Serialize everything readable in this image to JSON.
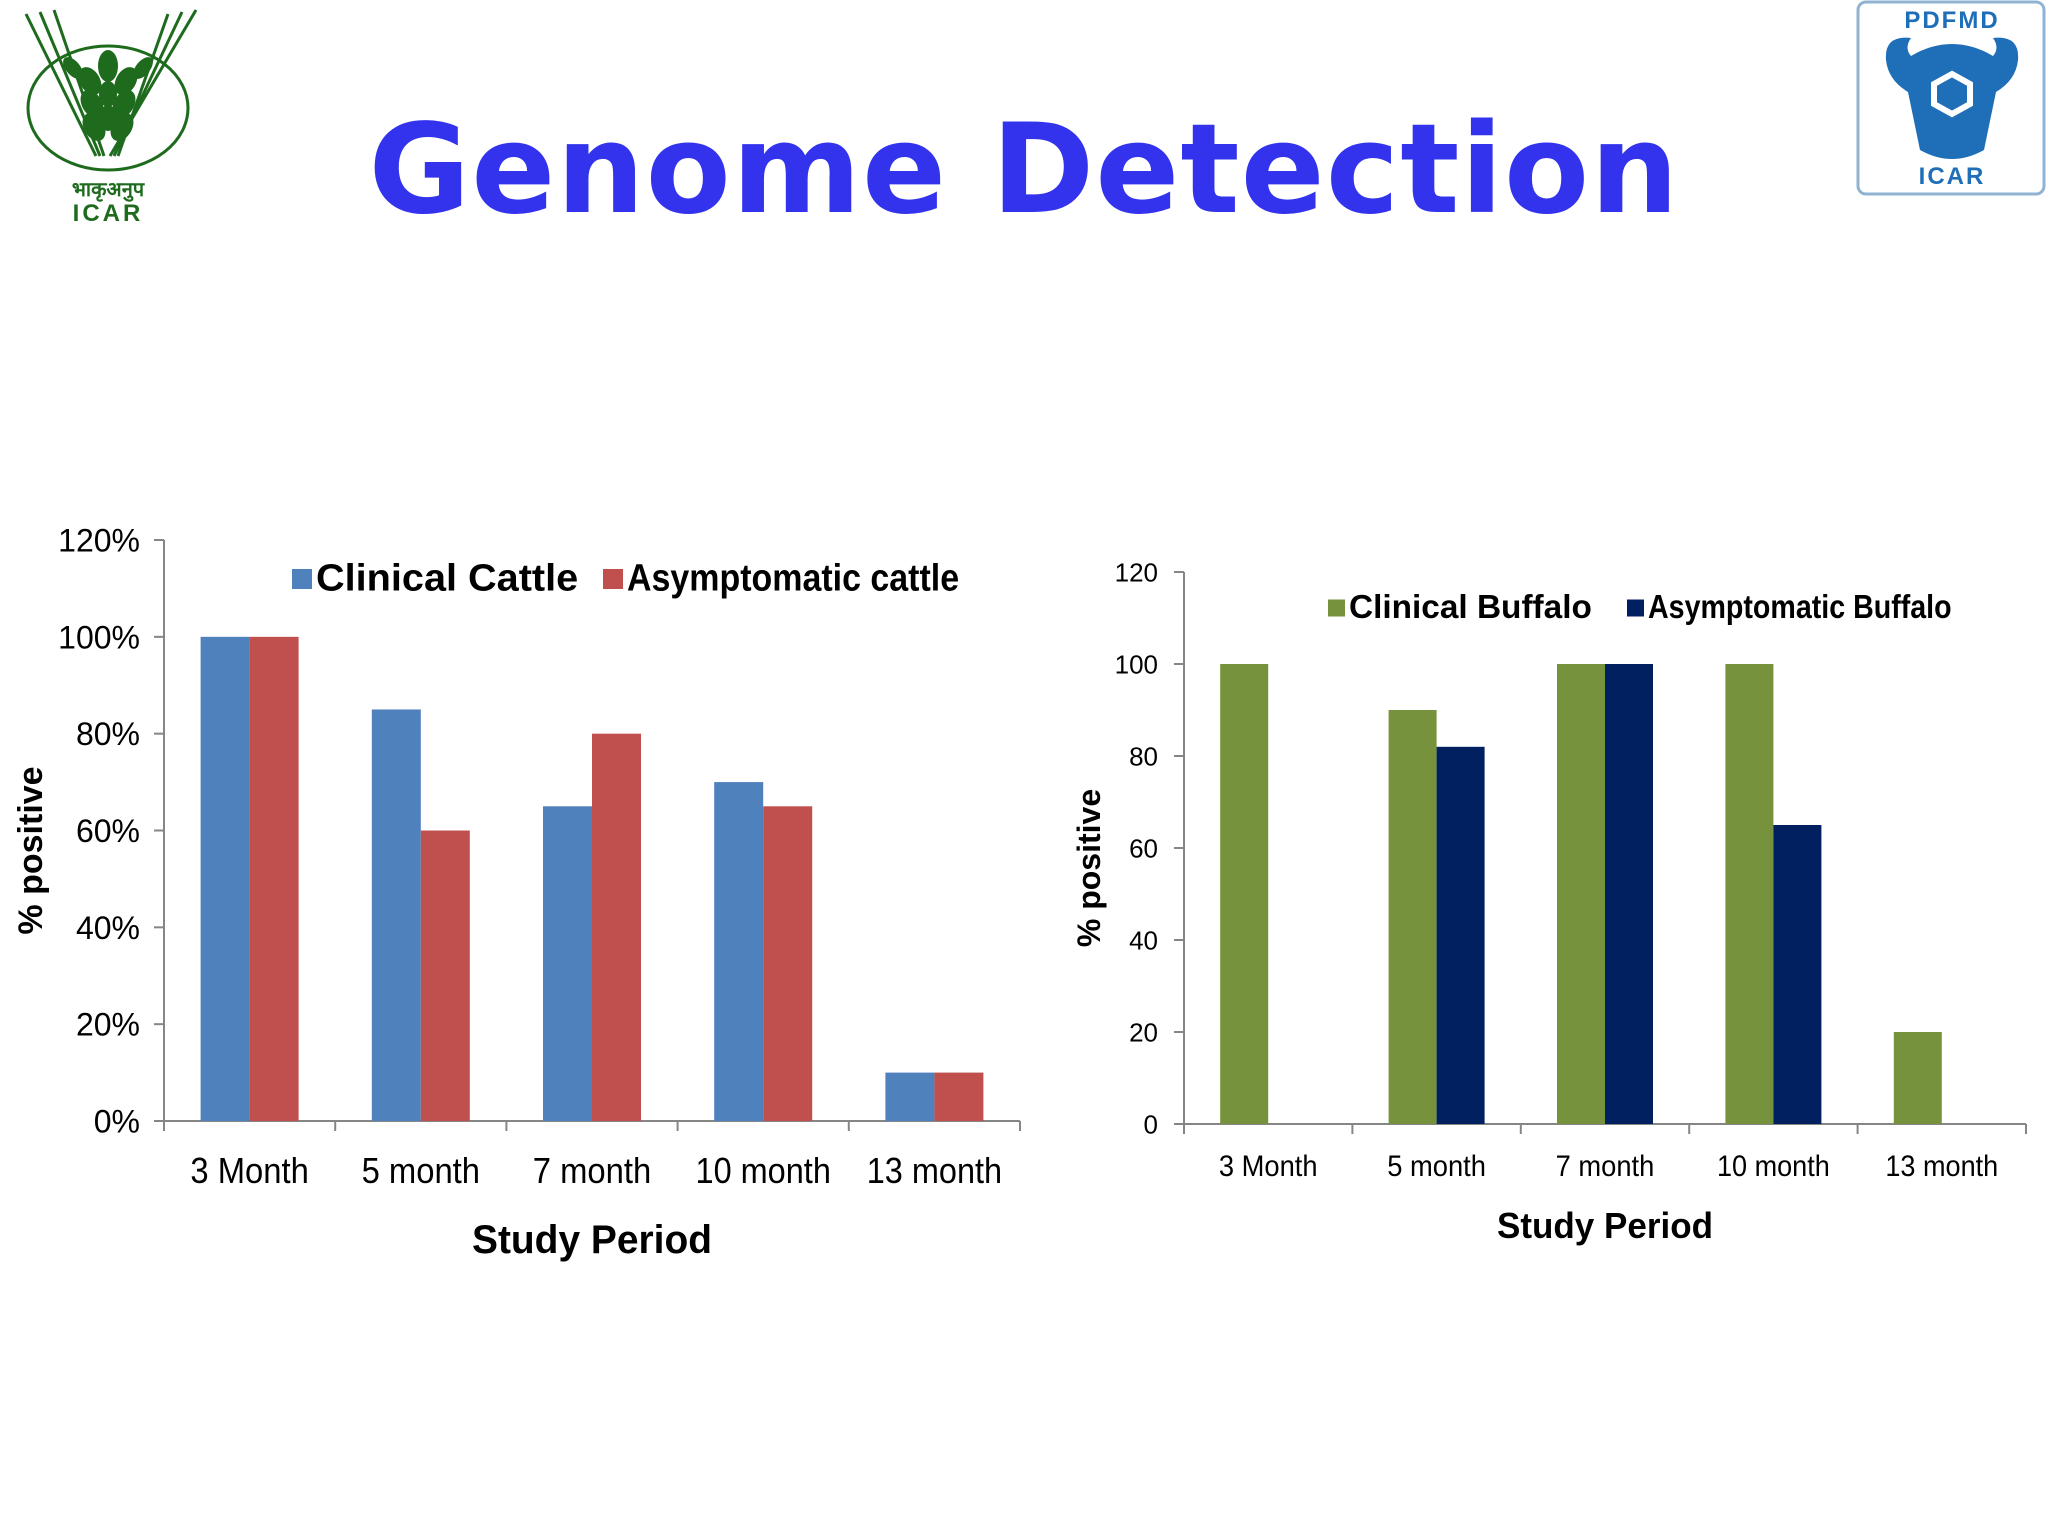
{
  "slide": {
    "title": "Genome Detection",
    "title_color": "#3333ee"
  },
  "logos": {
    "left": {
      "icon": "icar-wheat-logo",
      "text_hindi": "भाकृअनुप",
      "text_english": "ICAR",
      "color": "#1e6b1e"
    },
    "right": {
      "icon": "pdfmd-bull-logo",
      "text_top": "PDFMD",
      "text_bottom": "ICAR",
      "color": "#1f6fb8"
    }
  },
  "chart_data": [
    {
      "type": "bar",
      "categories": [
        "3 Month",
        "5 month",
        "7 month",
        "10 month",
        "13 month"
      ],
      "series": [
        {
          "name": "Clinical Cattle",
          "values": [
            100,
            85,
            65,
            70,
            10
          ],
          "color": "#4f81bd"
        },
        {
          "name": "Asymptomatic cattle",
          "values": [
            100,
            60,
            80,
            65,
            10
          ],
          "color": "#c0504d"
        }
      ],
      "title": "",
      "xlabel": "Study Period",
      "ylabel": "% positive",
      "ylim": [
        0,
        120
      ],
      "yticks": [
        "0%",
        "20%",
        "40%",
        "60%",
        "80%",
        "100%",
        "120%"
      ],
      "grid": false,
      "legend": "top"
    },
    {
      "type": "bar",
      "categories": [
        "3 Month",
        "5 month",
        "7 month",
        "10 month",
        "13 month"
      ],
      "series": [
        {
          "name": "Clinical Buffalo",
          "values": [
            100,
            90,
            100,
            100,
            20
          ],
          "color": "#76923c"
        },
        {
          "name": "Asymptomatic Buffalo",
          "values": [
            0,
            82,
            100,
            65,
            0
          ],
          "color": "#002060"
        }
      ],
      "title": "",
      "xlabel": "Study Period",
      "ylabel": "% positive",
      "ylim": [
        0,
        120
      ],
      "yticks": [
        "0",
        "20",
        "40",
        "60",
        "80",
        "100",
        "120"
      ],
      "grid": false,
      "legend": "top"
    }
  ]
}
